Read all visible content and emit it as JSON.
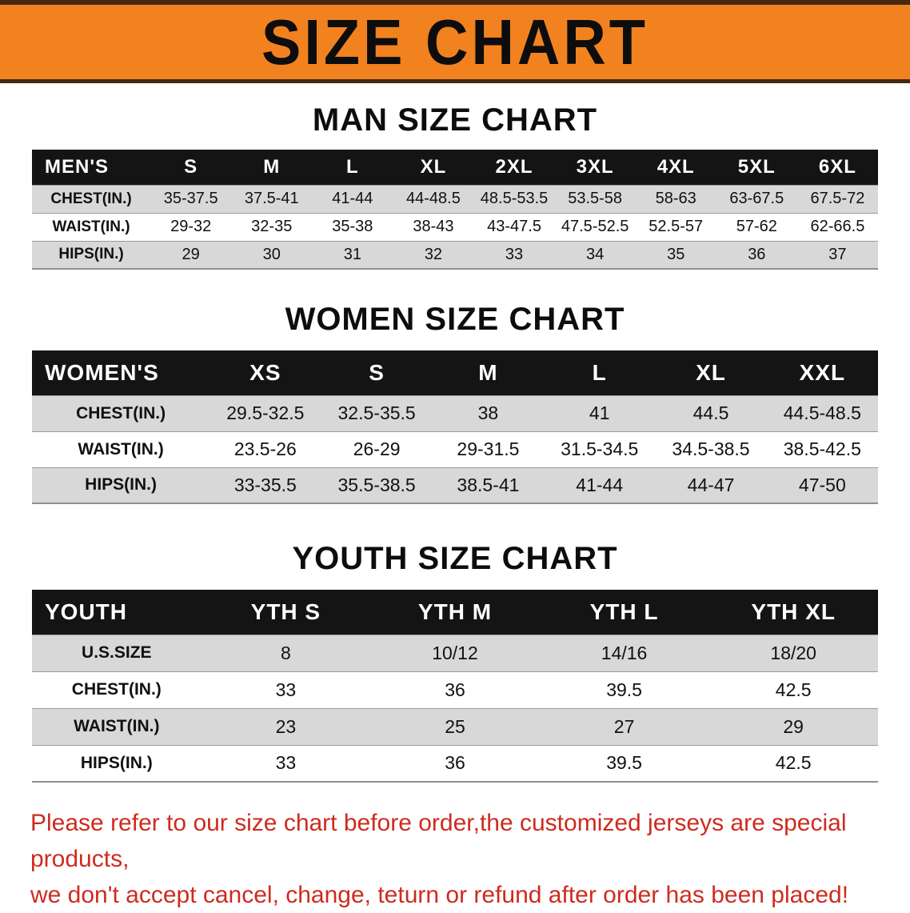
{
  "banner": {
    "title": "SIZE CHART"
  },
  "colors": {
    "banner_bg": "#f28220",
    "banner_border": "#46290f",
    "header_row_bg": "#141414",
    "row_alt_bg": "#d8d8d8",
    "disclaimer_red": "#ce2b1f"
  },
  "sections": [
    {
      "id": "men",
      "heading": "MAN SIZE CHART",
      "columns": [
        "MEN'S",
        "S",
        "M",
        "L",
        "XL",
        "2XL",
        "3XL",
        "4XL",
        "5XL",
        "6XL"
      ],
      "rows": [
        [
          "CHEST(IN.)",
          "35-37.5",
          "37.5-41",
          "41-44",
          "44-48.5",
          "48.5-53.5",
          "53.5-58",
          "58-63",
          "63-67.5",
          "67.5-72"
        ],
        [
          "WAIST(IN.)",
          "29-32",
          "32-35",
          "35-38",
          "38-43",
          "43-47.5",
          "47.5-52.5",
          "52.5-57",
          "57-62",
          "62-66.5"
        ],
        [
          "HIPS(IN.)",
          "29",
          "30",
          "31",
          "32",
          "33",
          "34",
          "35",
          "36",
          "37"
        ]
      ]
    },
    {
      "id": "women",
      "heading": "WOMEN SIZE CHART",
      "columns": [
        "WOMEN'S",
        "XS",
        "S",
        "M",
        "L",
        "XL",
        "XXL"
      ],
      "rows": [
        [
          "CHEST(IN.)",
          "29.5-32.5",
          "32.5-35.5",
          "38",
          "41",
          "44.5",
          "44.5-48.5"
        ],
        [
          "WAIST(IN.)",
          "23.5-26",
          "26-29",
          "29-31.5",
          "31.5-34.5",
          "34.5-38.5",
          "38.5-42.5"
        ],
        [
          "HIPS(IN.)",
          "33-35.5",
          "35.5-38.5",
          "38.5-41",
          "41-44",
          "44-47",
          "47-50"
        ]
      ]
    },
    {
      "id": "youth",
      "heading": "YOUTH SIZE CHART",
      "columns": [
        "YOUTH",
        "YTH S",
        "YTH M",
        "YTH L",
        "YTH XL"
      ],
      "rows": [
        [
          "U.S.SIZE",
          "8",
          "10/12",
          "14/16",
          "18/20"
        ],
        [
          "CHEST(IN.)",
          "33",
          "36",
          "39.5",
          "42.5"
        ],
        [
          "WAIST(IN.)",
          "23",
          "25",
          "27",
          "29"
        ],
        [
          "HIPS(IN.)",
          "33",
          "36",
          "39.5",
          "42.5"
        ]
      ]
    }
  ],
  "disclaimer": {
    "line1": "Please refer to our size chart before order,the customized jerseys are special products,",
    "line2": "we don't accept cancel, change, teturn or refund after order has been placed!"
  }
}
